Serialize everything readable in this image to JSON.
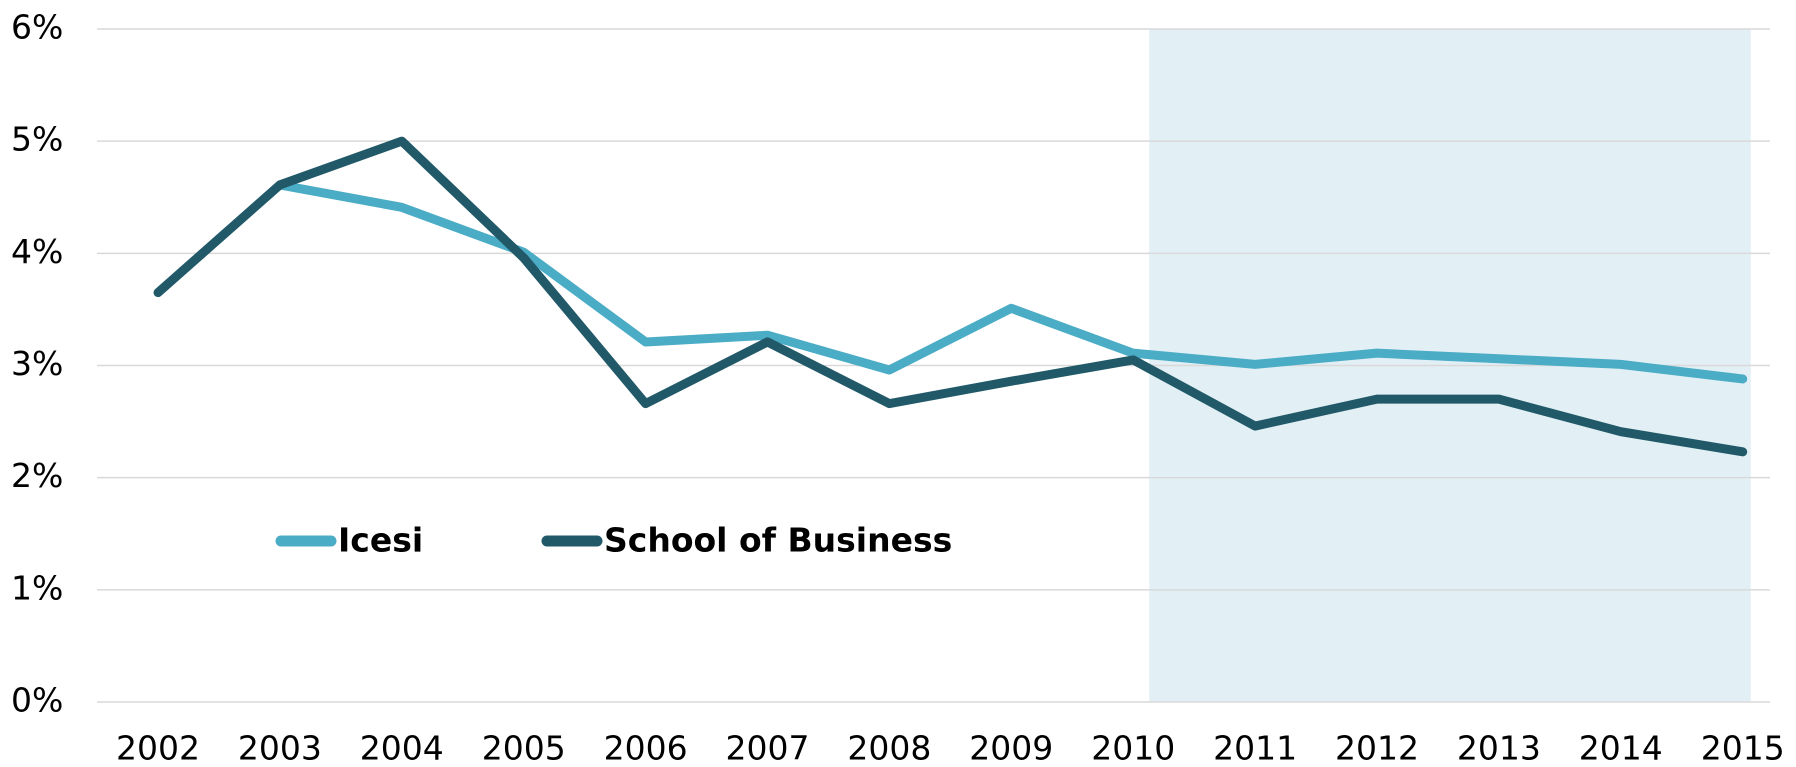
{
  "chart_data": {
    "type": "line",
    "categories": [
      "2002",
      "2003",
      "2004",
      "2005",
      "2006",
      "2007",
      "2008",
      "2009",
      "2010",
      "2011",
      "2012",
      "2013",
      "2014",
      "2015"
    ],
    "series": [
      {
        "name": "Icesi",
        "color": "#4bacc6",
        "values": [
          null,
          4.61,
          4.41,
          4.01,
          3.21,
          3.27,
          2.96,
          3.51,
          3.11,
          3.01,
          3.11,
          3.06,
          3.01,
          2.88
        ]
      },
      {
        "name": "School of Business",
        "color": "#215968",
        "values": [
          3.65,
          4.61,
          5.0,
          3.96,
          2.66,
          3.21,
          2.66,
          2.86,
          3.05,
          2.46,
          2.7,
          2.7,
          2.41,
          2.23
        ]
      }
    ],
    "ylim": [
      0,
      6
    ],
    "yticks": [
      {
        "value": 0,
        "label": "0%"
      },
      {
        "value": 1,
        "label": "1%"
      },
      {
        "value": 2,
        "label": "2%"
      },
      {
        "value": 3,
        "label": "3%"
      },
      {
        "value": 4,
        "label": "4%"
      },
      {
        "value": 5,
        "label": "5%"
      },
      {
        "value": 6,
        "label": "6%"
      }
    ],
    "grid": true,
    "shaded_range": [
      "2010",
      "2015"
    ],
    "shade_color": "#e2f0f5"
  }
}
